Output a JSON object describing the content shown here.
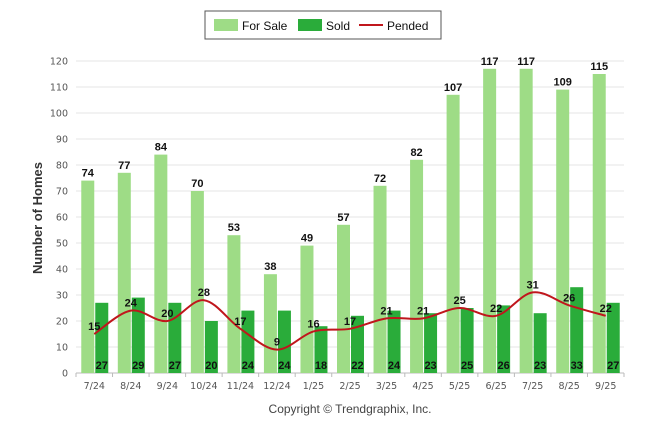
{
  "chart_data": {
    "type": "bar",
    "title": "",
    "xlabel": "",
    "ylabel": "Number of Homes",
    "ylim": [
      0,
      120
    ],
    "yticks": [
      0,
      10,
      20,
      30,
      40,
      50,
      60,
      70,
      80,
      90,
      100,
      110,
      120
    ],
    "grid": true,
    "legend_position": "top-center",
    "credit": "Copyright © Trendgraphix, Inc.",
    "categories": [
      "7/24",
      "8/24",
      "9/24",
      "10/24",
      "11/24",
      "12/24",
      "1/25",
      "2/25",
      "3/25",
      "4/25",
      "5/25",
      "6/25",
      "7/25",
      "8/25",
      "9/25"
    ],
    "series": [
      {
        "name": "For Sale",
        "type": "bar",
        "color": "#9edc86",
        "values": [
          74,
          77,
          84,
          70,
          53,
          38,
          49,
          57,
          72,
          82,
          107,
          117,
          117,
          109,
          115
        ]
      },
      {
        "name": "Sold",
        "type": "bar",
        "color": "#2aac3a",
        "values": [
          27,
          29,
          27,
          20,
          24,
          24,
          18,
          22,
          24,
          23,
          25,
          26,
          23,
          33,
          27
        ]
      },
      {
        "name": "Pended",
        "type": "line",
        "color": "#c0161c",
        "values": [
          15,
          24,
          20,
          28,
          17,
          9,
          16,
          17,
          21,
          21,
          25,
          22,
          31,
          26,
          22
        ]
      }
    ]
  }
}
